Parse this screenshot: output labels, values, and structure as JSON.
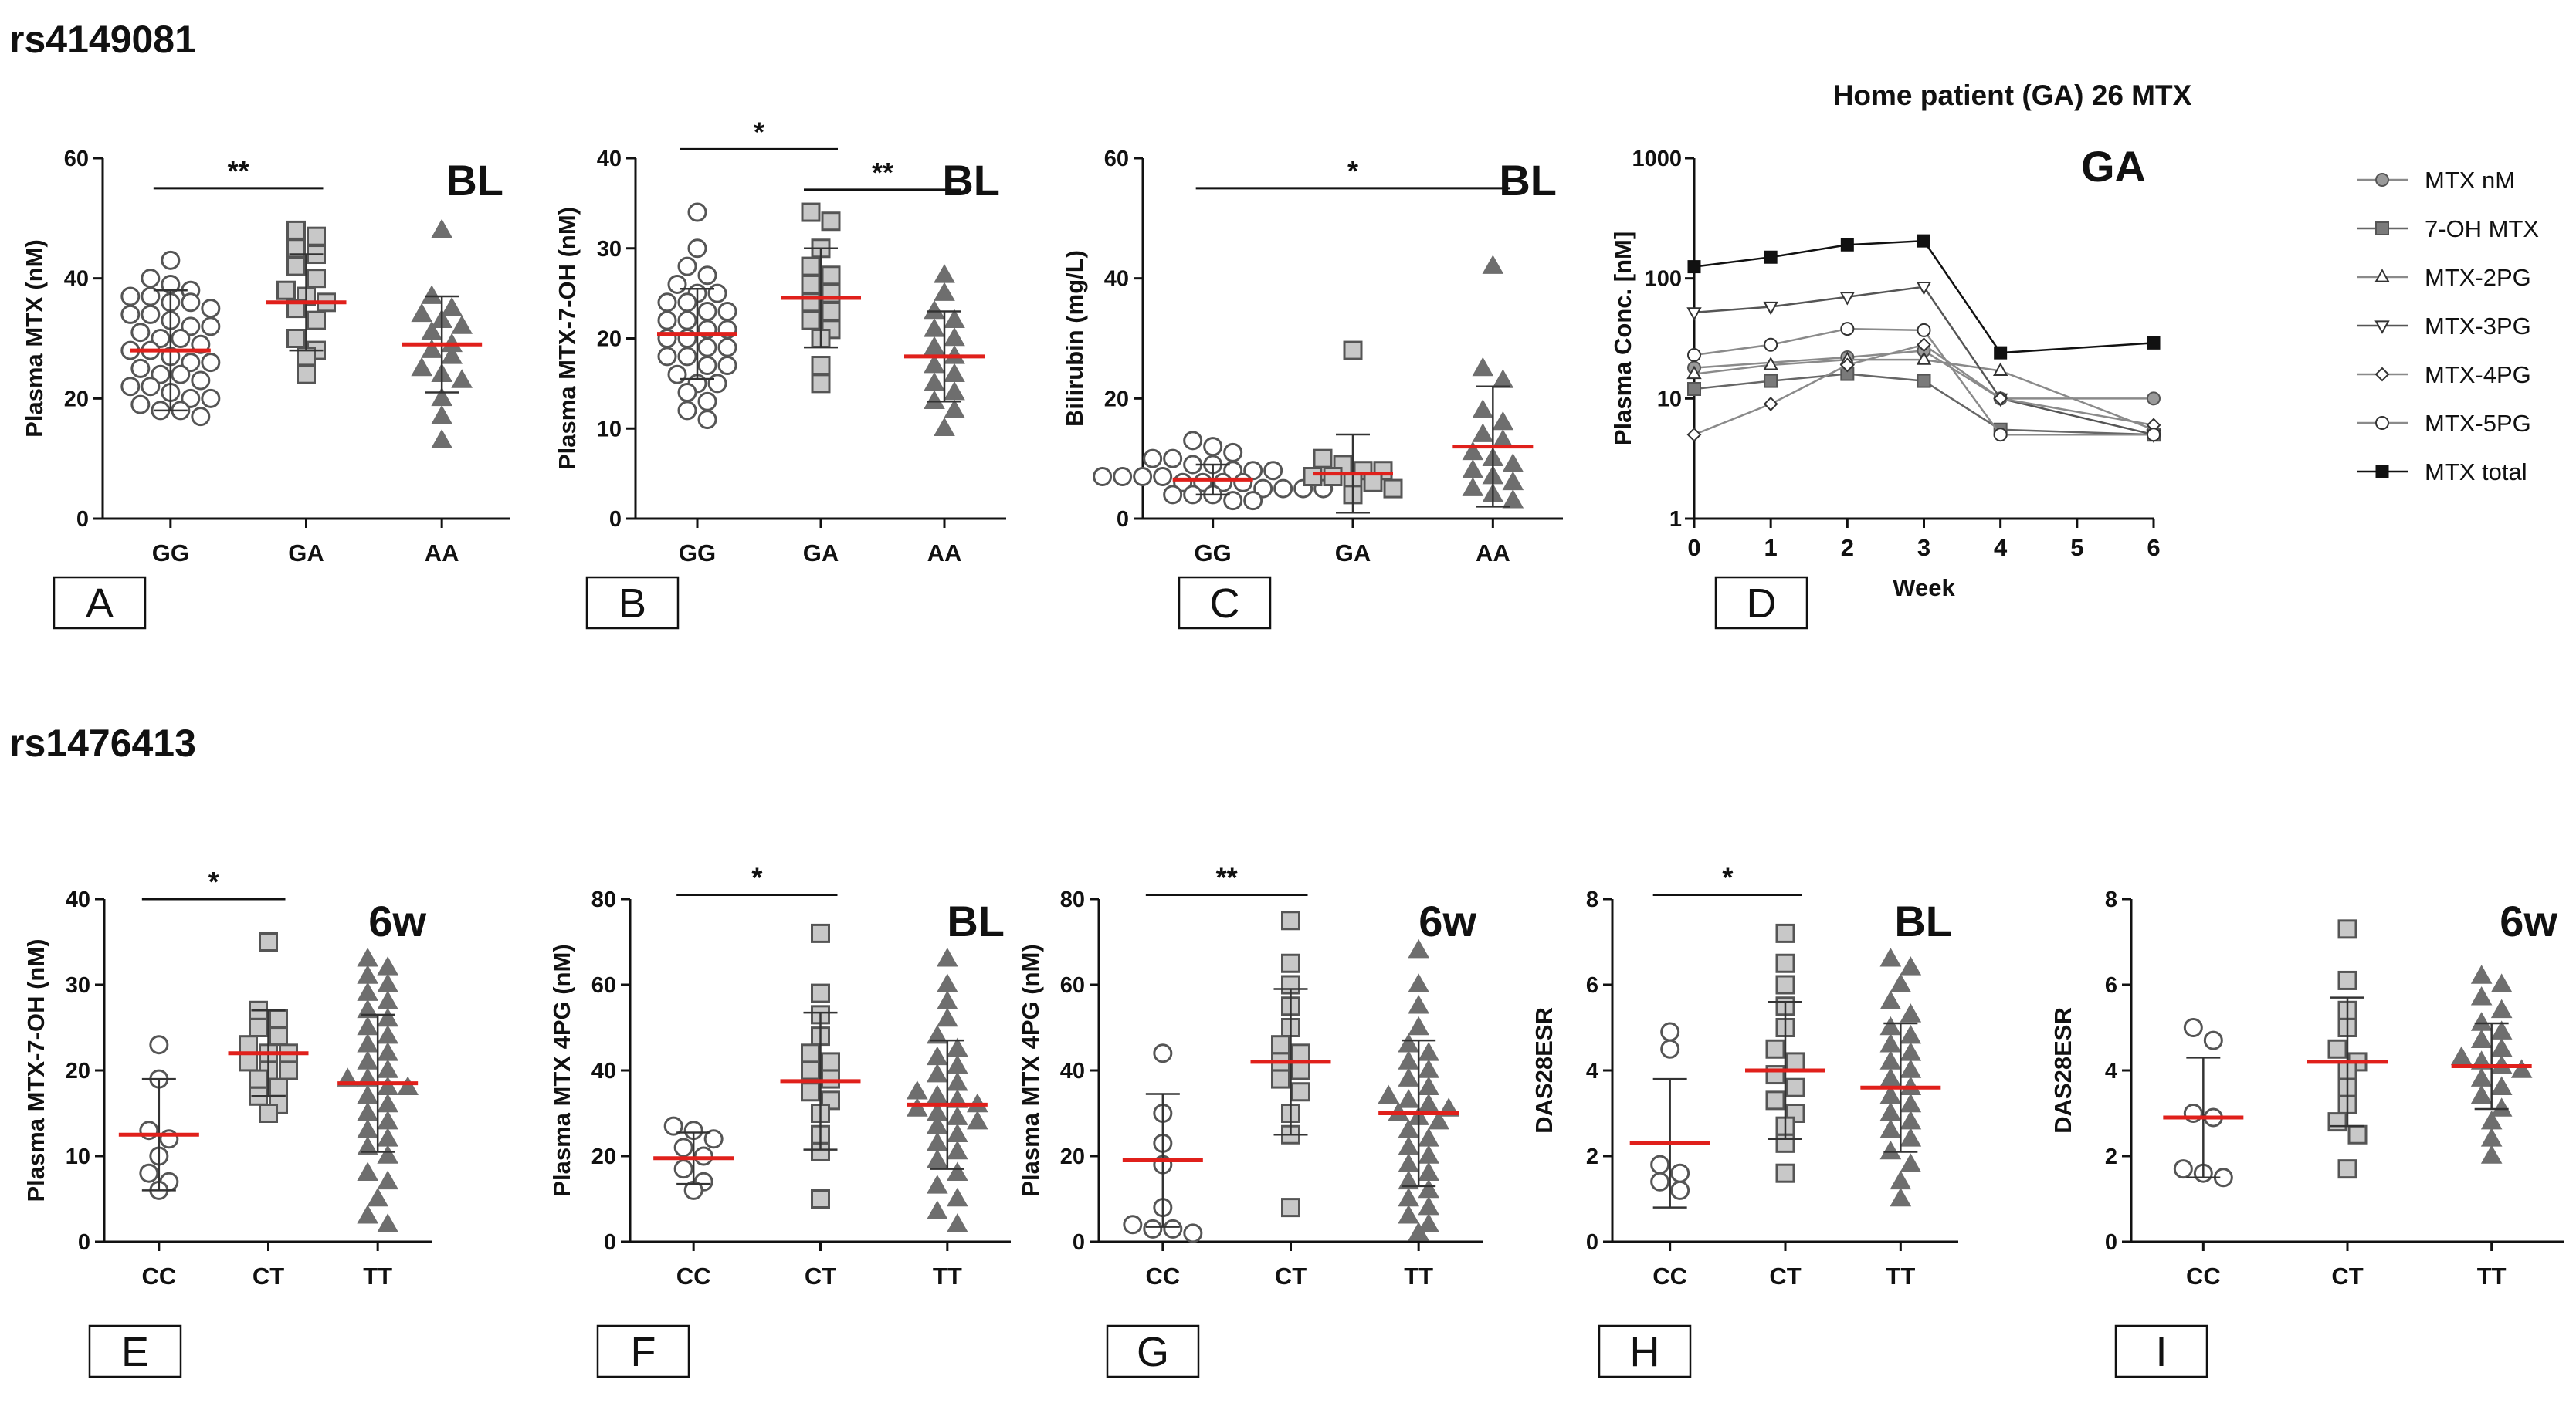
{
  "sections": {
    "top": "rs4149081",
    "bottom": "rs1476413"
  },
  "chart_data": [
    {
      "id": "A",
      "type": "scatter",
      "panel_label": "A",
      "tag": "BL",
      "ylabel": "Plasma MTX (nM)",
      "ylim": [
        0,
        60
      ],
      "yticks": [
        0,
        20,
        40,
        60
      ],
      "categories": [
        "GG",
        "GA",
        "AA"
      ],
      "groups": [
        {
          "name": "GG",
          "marker": "circle",
          "mean": 28,
          "sd": 10,
          "values": [
            17,
            18,
            18,
            19,
            20,
            20,
            21,
            22,
            22,
            23,
            24,
            24,
            25,
            26,
            26,
            27,
            28,
            28,
            29,
            30,
            30,
            31,
            32,
            32,
            33,
            34,
            34,
            35,
            36,
            36,
            37,
            37,
            38,
            39,
            40,
            43
          ]
        },
        {
          "name": "GA",
          "marker": "square",
          "mean": 36,
          "sd": 8,
          "values": [
            24,
            27,
            28,
            30,
            33,
            35,
            36,
            37,
            38,
            40,
            42,
            44,
            45,
            47,
            48
          ]
        },
        {
          "name": "AA",
          "marker": "triangle",
          "mean": 29,
          "sd": 8,
          "values": [
            13,
            17,
            20,
            23,
            24,
            25,
            27,
            28,
            29,
            31,
            32,
            33,
            34,
            35,
            37,
            48
          ]
        }
      ],
      "significance": [
        {
          "from": 0,
          "to": 1,
          "level": 55,
          "label": "**"
        }
      ]
    },
    {
      "id": "B",
      "type": "scatter",
      "panel_label": "B",
      "tag": "BL",
      "ylabel": "Plasma MTX-7-OH (nM)",
      "ylim": [
        0,
        40
      ],
      "yticks": [
        0,
        10,
        20,
        30,
        40
      ],
      "categories": [
        "GG",
        "GA",
        "AA"
      ],
      "groups": [
        {
          "name": "GG",
          "marker": "circle",
          "mean": 20.5,
          "sd": 5,
          "values": [
            11,
            12,
            13,
            14,
            15,
            15,
            16,
            17,
            17,
            18,
            18,
            19,
            19,
            20,
            20,
            21,
            21,
            22,
            22,
            23,
            23,
            24,
            24,
            25,
            25,
            26,
            27,
            28,
            30,
            34
          ]
        },
        {
          "name": "GA",
          "marker": "square",
          "mean": 24.5,
          "sd": 5.5,
          "values": [
            15,
            17,
            20,
            21,
            22,
            23,
            24,
            25,
            26,
            27,
            28,
            30,
            33,
            34
          ]
        },
        {
          "name": "AA",
          "marker": "triangle",
          "mean": 18,
          "sd": 5,
          "values": [
            10,
            12,
            13,
            14,
            15,
            16,
            17,
            18,
            19,
            20,
            21,
            22,
            23,
            25,
            27
          ]
        }
      ],
      "significance": [
        {
          "from": 0,
          "to": 1,
          "level": 41,
          "label": "*"
        },
        {
          "from": 1,
          "to": 2,
          "level": 36.5,
          "label": "**"
        }
      ]
    },
    {
      "id": "C",
      "type": "scatter",
      "panel_label": "C",
      "tag": "BL",
      "ylabel": "Bilirubin (mg/L)",
      "ylim": [
        0,
        60
      ],
      "yticks": [
        0,
        20,
        40,
        60
      ],
      "categories": [
        "GG",
        "GA",
        "AA"
      ],
      "groups": [
        {
          "name": "GG",
          "marker": "circle",
          "mean": 6.5,
          "sd": 2.5,
          "values": [
            3,
            3,
            4,
            4,
            4,
            5,
            5,
            5,
            5,
            6,
            6,
            6,
            6,
            7,
            7,
            7,
            7,
            8,
            8,
            8,
            9,
            9,
            10,
            10,
            11,
            12,
            13
          ]
        },
        {
          "name": "GA",
          "marker": "square",
          "mean": 7.5,
          "sd": 6.5,
          "values": [
            4,
            5,
            6,
            6,
            7,
            7,
            8,
            8,
            9,
            10,
            28
          ]
        },
        {
          "name": "AA",
          "marker": "triangle",
          "mean": 12,
          "sd": 10,
          "values": [
            3,
            4,
            5,
            6,
            7,
            8,
            9,
            10,
            11,
            13,
            14,
            16,
            18,
            23,
            25,
            42
          ]
        }
      ],
      "significance": [
        {
          "from": 0,
          "to": 2,
          "level": 55,
          "label": "*"
        }
      ]
    },
    {
      "id": "D",
      "type": "line",
      "panel_label": "D",
      "tag": "GA",
      "title": "Home patient (GA) 26 MTX",
      "xlabel": "Week",
      "ylabel": "Plasma Conc. [nM]",
      "yscale": "log",
      "ylim": [
        1,
        1000
      ],
      "yticks": [
        "1",
        "10",
        "100",
        "1000"
      ],
      "x": [
        0,
        1,
        2,
        3,
        4,
        5,
        6
      ],
      "series": [
        {
          "name": "MTX nM",
          "marker": "circle-filled-gray",
          "x": [
            0,
            2,
            3,
            4,
            6
          ],
          "values": [
            18,
            22,
            25,
            10,
            10
          ]
        },
        {
          "name": "7-OH MTX",
          "marker": "square-gray",
          "x": [
            0,
            1,
            2,
            3,
            4,
            6
          ],
          "values": [
            12,
            14,
            16,
            14,
            5.5,
            5
          ]
        },
        {
          "name": "MTX-2PG",
          "marker": "triangle-up",
          "x": [
            0,
            1,
            2,
            3,
            4,
            6
          ],
          "values": [
            16,
            19,
            21,
            21,
            17,
            5.5
          ]
        },
        {
          "name": "MTX-3PG",
          "marker": "triangle-down",
          "x": [
            0,
            1,
            2,
            3,
            4,
            6
          ],
          "values": [
            52,
            58,
            70,
            85,
            10,
            5
          ]
        },
        {
          "name": "MTX-4PG",
          "marker": "diamond",
          "x": [
            0,
            1,
            2,
            3,
            4,
            6
          ],
          "values": [
            5,
            9,
            19,
            28,
            10,
            6
          ]
        },
        {
          "name": "MTX-5PG",
          "marker": "circle-open",
          "x": [
            0,
            1,
            2,
            3,
            4,
            6
          ],
          "values": [
            23,
            28,
            38,
            37,
            5,
            5
          ]
        },
        {
          "name": "MTX total",
          "marker": "square-black",
          "x": [
            0,
            1,
            2,
            3,
            4,
            6
          ],
          "values": [
            125,
            150,
            190,
            205,
            24,
            29
          ]
        }
      ]
    },
    {
      "id": "E",
      "type": "scatter",
      "panel_label": "E",
      "tag": "6w",
      "ylabel": "Plasma MTX-7-OH (nM)",
      "ylim": [
        0,
        40
      ],
      "yticks": [
        0,
        10,
        20,
        30,
        40
      ],
      "categories": [
        "CC",
        "CT",
        "TT"
      ],
      "groups": [
        {
          "name": "CC",
          "marker": "circle",
          "mean": 12.5,
          "sd": 6.5,
          "values": [
            6,
            7,
            8,
            10,
            12,
            13,
            19,
            23
          ]
        },
        {
          "name": "CT",
          "marker": "square",
          "mean": 22,
          "sd": 5,
          "values": [
            15,
            16,
            17,
            18,
            19,
            20,
            20,
            21,
            22,
            22,
            23,
            24,
            25,
            26,
            27,
            35
          ]
        },
        {
          "name": "TT",
          "marker": "triangle",
          "mean": 18.5,
          "sd": 8,
          "values": [
            2,
            3,
            5,
            7,
            8,
            10,
            11,
            12,
            13,
            14,
            15,
            16,
            17,
            18,
            18,
            19,
            19,
            20,
            21,
            22,
            23,
            24,
            25,
            26,
            27,
            28,
            29,
            30,
            31,
            32,
            33
          ]
        }
      ],
      "significance": [
        {
          "from": 0,
          "to": 1,
          "level": 40,
          "label": "*"
        }
      ]
    },
    {
      "id": "F",
      "type": "scatter",
      "panel_label": "F",
      "tag": "BL",
      "ylabel": "Plasma MTX 4PG (nM)",
      "ylim": [
        0,
        80
      ],
      "yticks": [
        0,
        20,
        40,
        60,
        80
      ],
      "categories": [
        "CC",
        "CT",
        "TT"
      ],
      "groups": [
        {
          "name": "CC",
          "marker": "circle",
          "mean": 19.5,
          "sd": 6,
          "values": [
            12,
            14,
            17,
            20,
            22,
            24,
            26,
            27
          ]
        },
        {
          "name": "CT",
          "marker": "square",
          "mean": 37.5,
          "sd": 16,
          "values": [
            10,
            21,
            25,
            30,
            33,
            35,
            38,
            40,
            42,
            44,
            48,
            53,
            58,
            72
          ]
        },
        {
          "name": "TT",
          "marker": "triangle",
          "mean": 32,
          "sd": 15,
          "values": [
            4,
            7,
            10,
            13,
            16,
            19,
            21,
            23,
            25,
            27,
            28,
            29,
            30,
            31,
            32,
            33,
            34,
            35,
            37,
            39,
            41,
            43,
            45,
            48,
            52,
            56,
            60,
            66
          ]
        }
      ],
      "significance": [
        {
          "from": 0,
          "to": 1,
          "level": 81,
          "label": "*"
        }
      ]
    },
    {
      "id": "G",
      "type": "scatter",
      "panel_label": "G",
      "tag": "6w",
      "ylabel": "Plasma MTX 4PG (nM)",
      "ylim": [
        0,
        80
      ],
      "yticks": [
        0,
        20,
        40,
        60,
        80
      ],
      "categories": [
        "CC",
        "CT",
        "TT"
      ],
      "groups": [
        {
          "name": "CC",
          "marker": "circle",
          "mean": 19,
          "sd": 15.5,
          "values": [
            2,
            3,
            3,
            4,
            8,
            18,
            23,
            30,
            44
          ]
        },
        {
          "name": "CT",
          "marker": "square",
          "mean": 42,
          "sd": 17,
          "values": [
            8,
            25,
            30,
            35,
            38,
            40,
            42,
            44,
            46,
            50,
            55,
            60,
            65,
            75
          ]
        },
        {
          "name": "TT",
          "marker": "triangle",
          "mean": 30,
          "sd": 17,
          "values": [
            2,
            4,
            6,
            8,
            10,
            12,
            14,
            16,
            18,
            20,
            22,
            24,
            26,
            28,
            29,
            30,
            31,
            32,
            33,
            34,
            36,
            38,
            40,
            42,
            44,
            46,
            50,
            55,
            60,
            68
          ]
        }
      ],
      "significance": [
        {
          "from": 0,
          "to": 1,
          "level": 81,
          "label": "**"
        }
      ]
    },
    {
      "id": "H",
      "type": "scatter",
      "panel_label": "H",
      "tag": "BL",
      "ylabel": "DAS28ESR",
      "ylim": [
        0,
        8
      ],
      "yticks": [
        0,
        2,
        4,
        6,
        8
      ],
      "categories": [
        "CC",
        "CT",
        "TT"
      ],
      "groups": [
        {
          "name": "CC",
          "marker": "circle",
          "mean": 2.3,
          "sd": 1.5,
          "values": [
            1.2,
            1.4,
            1.6,
            1.8,
            4.5,
            4.9
          ]
        },
        {
          "name": "CT",
          "marker": "square",
          "mean": 4,
          "sd": 1.6,
          "values": [
            1.6,
            2.3,
            2.7,
            3,
            3.3,
            3.6,
            3.9,
            4.2,
            4.5,
            5,
            5.5,
            6,
            6.5,
            7.2
          ]
        },
        {
          "name": "TT",
          "marker": "triangle",
          "mean": 3.6,
          "sd": 1.5,
          "values": [
            1,
            1.4,
            1.8,
            2.1,
            2.4,
            2.6,
            2.8,
            3,
            3.2,
            3.4,
            3.6,
            3.8,
            4,
            4.2,
            4.4,
            4.6,
            4.8,
            5,
            5.3,
            5.6,
            6,
            6.4,
            6.6
          ]
        }
      ],
      "significance": [
        {
          "from": 0,
          "to": 1,
          "level": 8.1,
          "label": "*"
        }
      ]
    },
    {
      "id": "I",
      "type": "scatter",
      "panel_label": "I",
      "tag": "6w",
      "ylabel": "DAS28ESR",
      "ylim": [
        0,
        8
      ],
      "yticks": [
        0,
        2,
        4,
        6,
        8
      ],
      "categories": [
        "CC",
        "CT",
        "TT"
      ],
      "groups": [
        {
          "name": "CC",
          "marker": "circle",
          "mean": 2.9,
          "sd": 1.4,
          "values": [
            1.5,
            1.6,
            1.7,
            2.9,
            3,
            4.7,
            5
          ]
        },
        {
          "name": "CT",
          "marker": "square",
          "mean": 4.2,
          "sd": 1.5,
          "values": [
            1.7,
            2.5,
            2.8,
            3.2,
            3.6,
            4,
            4.2,
            4.5,
            5,
            5.4,
            6.1,
            7.3
          ]
        },
        {
          "name": "TT",
          "marker": "triangle",
          "mean": 4.1,
          "sd": 1,
          "values": [
            2,
            2.4,
            2.8,
            3.1,
            3.4,
            3.6,
            3.8,
            4,
            4.1,
            4.2,
            4.3,
            4.5,
            4.7,
            4.9,
            5.1,
            5.4,
            5.7,
            6,
            6.2
          ]
        }
      ]
    }
  ]
}
